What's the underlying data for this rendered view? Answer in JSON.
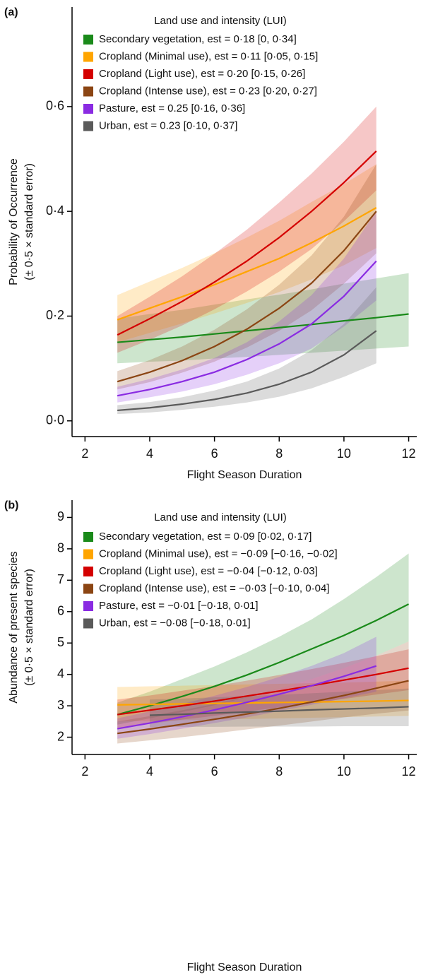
{
  "chart_data": [
    {
      "type": "line",
      "panel_label": "(a)",
      "legend_title": "Land use and intensity (LUI)",
      "xlabel": "Flight Season Duration",
      "ylabel": [
        "Probability of Occurrence",
        "(± 0·5 × standard error)"
      ],
      "x": [
        3,
        4,
        5,
        6,
        7,
        8,
        9,
        10,
        11,
        12
      ],
      "xlim": [
        1.6,
        12.25
      ],
      "xticks": [
        2,
        4,
        6,
        8,
        10,
        12
      ],
      "ylim": [
        -0.03,
        0.79
      ],
      "yticks": [
        {
          "value": 0,
          "label": "0·0"
        },
        {
          "value": 0.2,
          "label": "0·2"
        },
        {
          "value": 0.4,
          "label": "0·4"
        },
        {
          "value": 0.6,
          "label": "0·6"
        }
      ],
      "series": [
        {
          "name": "Secondary vegetation, est = 0·18 [0, 0·34]",
          "color": "#1a8a1a",
          "values": [
            0.15,
            0.155,
            0.16,
            0.166,
            0.172,
            0.178,
            0.184,
            0.191,
            0.197,
            0.204
          ],
          "lower": [
            0.11,
            0.113,
            0.115,
            0.119,
            0.122,
            0.126,
            0.13,
            0.134,
            0.138,
            0.142
          ],
          "upper": [
            0.195,
            0.204,
            0.212,
            0.222,
            0.232,
            0.241,
            0.251,
            0.262,
            0.272,
            0.282
          ]
        },
        {
          "name": "Cropland (Minimal use), est = 0·11 [0·05, 0·15]",
          "color": "#ffa500",
          "values": [
            0.193,
            0.215,
            0.237,
            0.26,
            0.285,
            0.31,
            0.34,
            0.372,
            0.407,
            null
          ],
          "lower": [
            0.15,
            0.168,
            0.186,
            0.205,
            0.225,
            0.246,
            0.27,
            0.297,
            0.33,
            null
          ],
          "upper": [
            0.24,
            0.266,
            0.292,
            0.32,
            0.35,
            0.382,
            0.418,
            0.452,
            0.49,
            null
          ]
        },
        {
          "name": "Cropland (Light use), est = 0·20 [0·15, 0·26]",
          "color": "#d40000",
          "values": [
            0.164,
            0.195,
            0.228,
            0.265,
            0.305,
            0.35,
            0.4,
            0.455,
            0.515,
            null
          ],
          "lower": [
            0.13,
            0.155,
            0.182,
            0.213,
            0.247,
            0.285,
            0.328,
            0.381,
            0.44,
            null
          ],
          "upper": [
            0.2,
            0.237,
            0.276,
            0.319,
            0.365,
            0.417,
            0.472,
            0.533,
            0.6,
            null
          ]
        },
        {
          "name": "Cropland (Intense use), est = 0·23 [0·20, 0·27]",
          "color": "#8b4513",
          "values": [
            0.075,
            0.093,
            0.115,
            0.142,
            0.175,
            0.215,
            0.263,
            0.325,
            0.4,
            null
          ],
          "lower": [
            0.06,
            0.074,
            0.092,
            0.113,
            0.14,
            0.172,
            0.211,
            0.262,
            0.32,
            null
          ],
          "upper": [
            0.095,
            0.116,
            0.142,
            0.174,
            0.213,
            0.26,
            0.316,
            0.39,
            0.49,
            null
          ]
        },
        {
          "name": "Pasture, est = 0.25 [0·16, 0·36]",
          "color": "#8a2be2",
          "values": [
            0.048,
            0.06,
            0.075,
            0.093,
            0.117,
            0.147,
            0.185,
            0.238,
            0.305,
            null
          ],
          "lower": [
            0.035,
            0.045,
            0.056,
            0.07,
            0.088,
            0.11,
            0.138,
            0.18,
            0.23,
            null
          ],
          "upper": [
            0.065,
            0.08,
            0.098,
            0.12,
            0.15,
            0.19,
            0.24,
            0.31,
            0.4,
            null
          ]
        },
        {
          "name": "Urban, est = 0.23 [0·10, 0·37]",
          "color": "#5a5a5a",
          "values": [
            0.02,
            0.025,
            0.032,
            0.041,
            0.053,
            0.07,
            0.093,
            0.126,
            0.172,
            null
          ],
          "lower": [
            0.013,
            0.016,
            0.021,
            0.027,
            0.035,
            0.046,
            0.062,
            0.084,
            0.11,
            null
          ],
          "upper": [
            0.03,
            0.036,
            0.045,
            0.058,
            0.075,
            0.1,
            0.135,
            0.185,
            0.255,
            null
          ]
        }
      ]
    },
    {
      "type": "line",
      "panel_label": "(b)",
      "legend_title": "Land use and intensity (LUI)",
      "xlabel": "Flight Season Duration",
      "ylabel": [
        "Abundance of present species",
        "(± 0·5 × standard error)"
      ],
      "x": [
        3,
        4,
        5,
        6,
        7,
        8,
        9,
        10,
        11,
        12
      ],
      "xlim": [
        1.6,
        12.25
      ],
      "xticks": [
        2,
        4,
        6,
        8,
        10,
        12
      ],
      "ylim": [
        1.45,
        9.55
      ],
      "yticks": [
        2,
        3,
        4,
        5,
        6,
        7,
        8,
        9
      ],
      "series": [
        {
          "name": "Secondary vegetation, est = 0·09 [0·02, 0·17]",
          "color": "#1a8a1a",
          "values": [
            2.72,
            3.0,
            3.3,
            3.62,
            3.98,
            4.38,
            4.81,
            5.24,
            5.72,
            6.24
          ],
          "lower": [
            2.4,
            2.6,
            2.8,
            3.02,
            3.27,
            3.55,
            3.85,
            4.2,
            4.6,
            5.05
          ],
          "upper": [
            3.1,
            3.45,
            3.85,
            4.25,
            4.7,
            5.2,
            5.75,
            6.4,
            7.1,
            7.85
          ]
        },
        {
          "name": "Cropland (Minimal use), est = −0·09 [−0·16, −0·02]",
          "color": "#ffa500",
          "values": [
            3.03,
            3.045,
            3.06,
            3.075,
            3.09,
            3.105,
            3.12,
            3.135,
            3.15,
            3.17
          ],
          "lower": [
            2.5,
            2.52,
            2.54,
            2.56,
            2.58,
            2.6,
            2.62,
            2.64,
            2.66,
            2.68
          ],
          "upper": [
            3.6,
            3.62,
            3.64,
            3.66,
            3.68,
            3.7,
            3.72,
            3.74,
            3.77,
            3.8
          ]
        },
        {
          "name": "Cropland (Light use), est = −0·04 [−0·12, 0·03]",
          "color": "#d40000",
          "values": [
            2.72,
            2.86,
            3.0,
            3.15,
            3.31,
            3.47,
            3.64,
            3.82,
            4.0,
            4.2
          ],
          "lower": [
            2.3,
            2.43,
            2.56,
            2.68,
            2.82,
            2.95,
            3.08,
            3.22,
            3.36,
            3.5
          ],
          "upper": [
            3.2,
            3.33,
            3.48,
            3.63,
            3.8,
            3.98,
            4.17,
            4.37,
            4.58,
            4.8
          ]
        },
        {
          "name": "Cropland (Intense use), est = −0·03 [−0·10, 0·04]",
          "color": "#8b4513",
          "values": [
            2.12,
            2.26,
            2.41,
            2.57,
            2.74,
            2.92,
            3.12,
            3.33,
            3.56,
            3.8
          ],
          "lower": [
            1.8,
            1.9,
            2.0,
            2.12,
            2.25,
            2.37,
            2.5,
            2.63,
            2.75,
            2.85
          ],
          "upper": [
            2.5,
            2.67,
            2.86,
            3.06,
            3.28,
            3.55,
            3.85,
            4.2,
            4.6,
            5.05
          ]
        },
        {
          "name": "Pasture, est = −0·01 [−0·18, 0·01]",
          "color": "#8a2be2",
          "values": [
            2.27,
            2.45,
            2.65,
            2.87,
            3.11,
            3.37,
            3.64,
            3.94,
            4.27,
            null
          ],
          "lower": [
            1.95,
            2.1,
            2.27,
            2.45,
            2.63,
            2.83,
            3.03,
            3.24,
            3.45,
            null
          ],
          "upper": [
            2.6,
            2.82,
            3.06,
            3.32,
            3.6,
            3.92,
            4.27,
            4.68,
            5.2,
            null
          ]
        },
        {
          "name": "Urban, est = −0·08 [−0·18, 0·01]",
          "color": "#5a5a5a",
          "values": [
            null,
            2.7,
            2.73,
            2.77,
            2.8,
            2.83,
            2.87,
            2.9,
            2.93,
            2.97
          ],
          "lower": [
            null,
            2.32,
            2.33,
            2.33,
            2.34,
            2.34,
            2.34,
            2.35,
            2.35,
            2.35
          ],
          "upper": [
            null,
            3.2,
            3.23,
            3.27,
            3.31,
            3.35,
            3.4,
            3.45,
            3.5,
            3.55
          ]
        }
      ]
    }
  ]
}
